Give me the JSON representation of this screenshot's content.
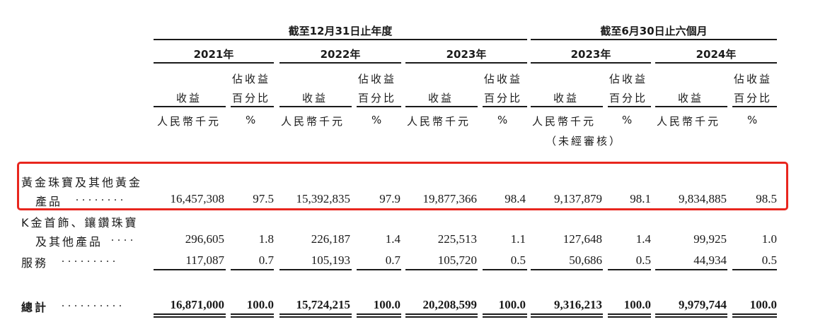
{
  "header": {
    "group_fy": "截至12月31日止年度",
    "group_hy": "截至6月30日止六個月",
    "years": [
      "2021年",
      "2022年",
      "2023年",
      "2023年",
      "2024年"
    ],
    "revenue_label": "收益",
    "pct_label_line1": "佔收益",
    "pct_label_line2": "百分比",
    "unit_rmb": "人民幣千元",
    "unit_pct": "%",
    "unaudited": "（未經審核）"
  },
  "rows": [
    {
      "label_line1": "黃金珠寶及其他黃金",
      "label_line2": "產品",
      "dots": "........",
      "values": [
        "16,457,308",
        "97.5",
        "15,392,835",
        "97.9",
        "19,877,366",
        "98.4",
        "9,137,879",
        "98.1",
        "9,834,885",
        "98.5"
      ]
    },
    {
      "label_line1": "K金首飾、鑲鑽珠寶",
      "label_line2": "及其他產品",
      "dots": "....",
      "values": [
        "296,605",
        "1.8",
        "226,187",
        "1.4",
        "225,513",
        "1.1",
        "127,648",
        "1.4",
        "99,925",
        "1.0"
      ]
    },
    {
      "label_line1": "服務",
      "label_line2": "",
      "dots": ".........",
      "values": [
        "117,087",
        "0.7",
        "105,193",
        "0.7",
        "105,720",
        "0.5",
        "50,686",
        "0.5",
        "44,934",
        "0.5"
      ]
    }
  ],
  "total": {
    "label": "總計",
    "dots": "..........",
    "values": [
      "16,871,000",
      "100.0",
      "15,724,215",
      "100.0",
      "20,208,599",
      "100.0",
      "9,316,213",
      "100.0",
      "9,979,744",
      "100.0"
    ]
  },
  "highlight_color": "#e8261e"
}
